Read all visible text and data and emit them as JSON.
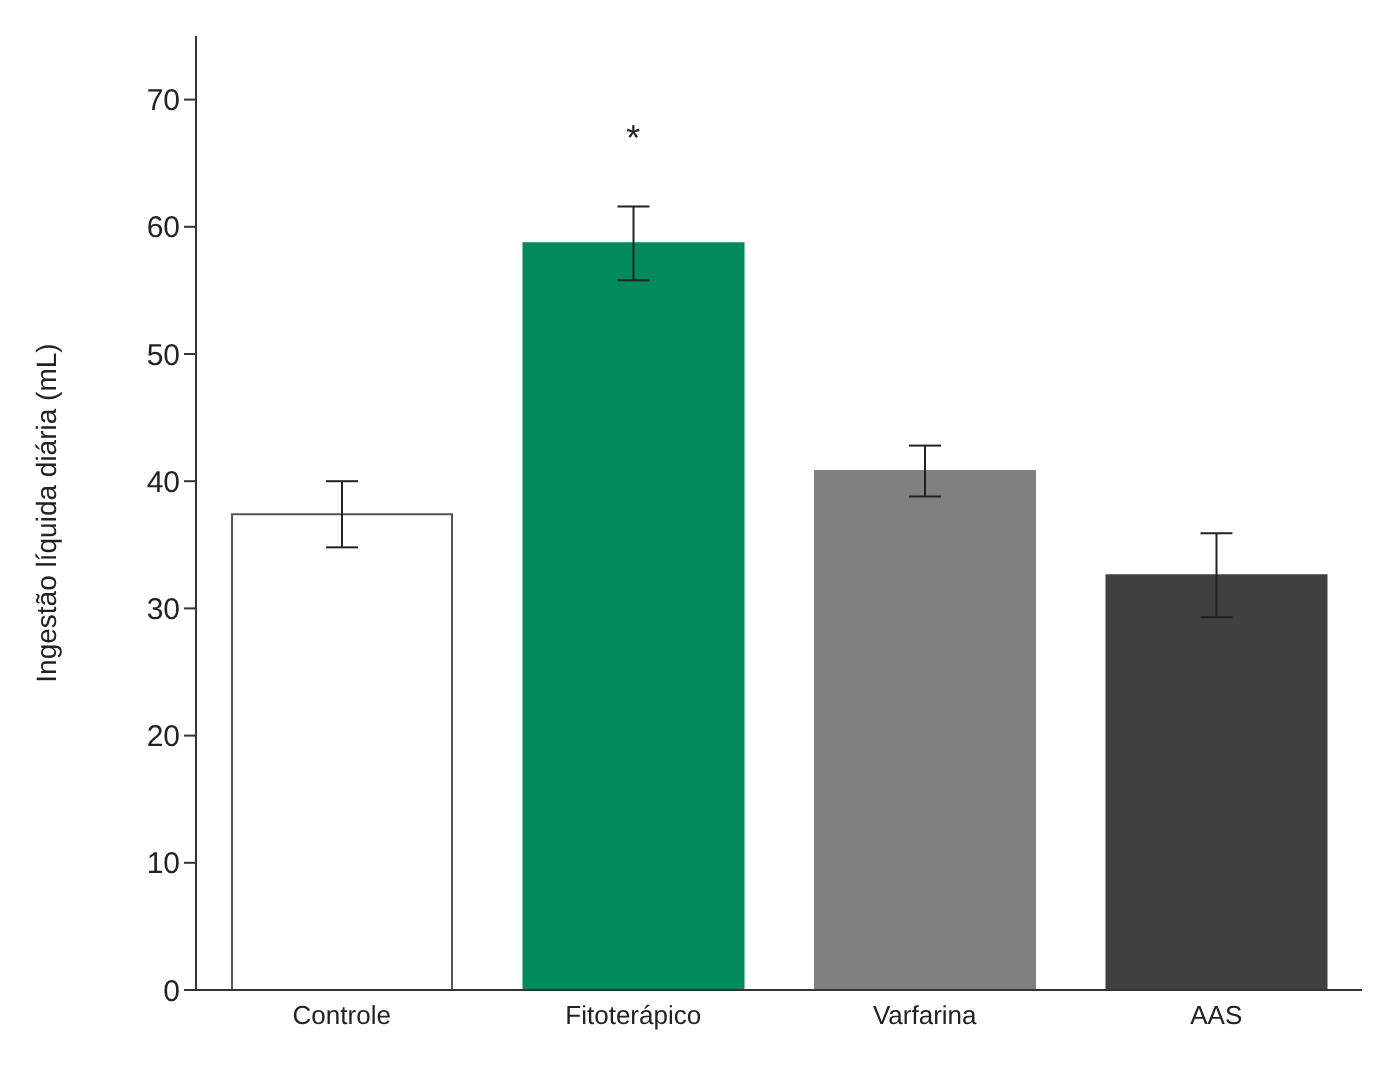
{
  "chart_data": {
    "type": "bar",
    "ylabel": "Ingestão líquida diária (mL)",
    "categories": [
      "Controle",
      "Fitoterápico",
      "Varfarina",
      "AAS"
    ],
    "values": [
      37.4,
      58.7,
      40.8,
      32.6
    ],
    "errors": [
      2.6,
      2.9,
      2,
      3.3
    ],
    "colors": [
      "#ffffff",
      "#008a5e",
      "#808080",
      "#404040"
    ],
    "ylim": [
      0,
      75
    ],
    "yticks": [
      0,
      10,
      20,
      30,
      40,
      50,
      60,
      70
    ],
    "annotations": [
      "*"
    ],
    "grid": false,
    "legend": false
  }
}
